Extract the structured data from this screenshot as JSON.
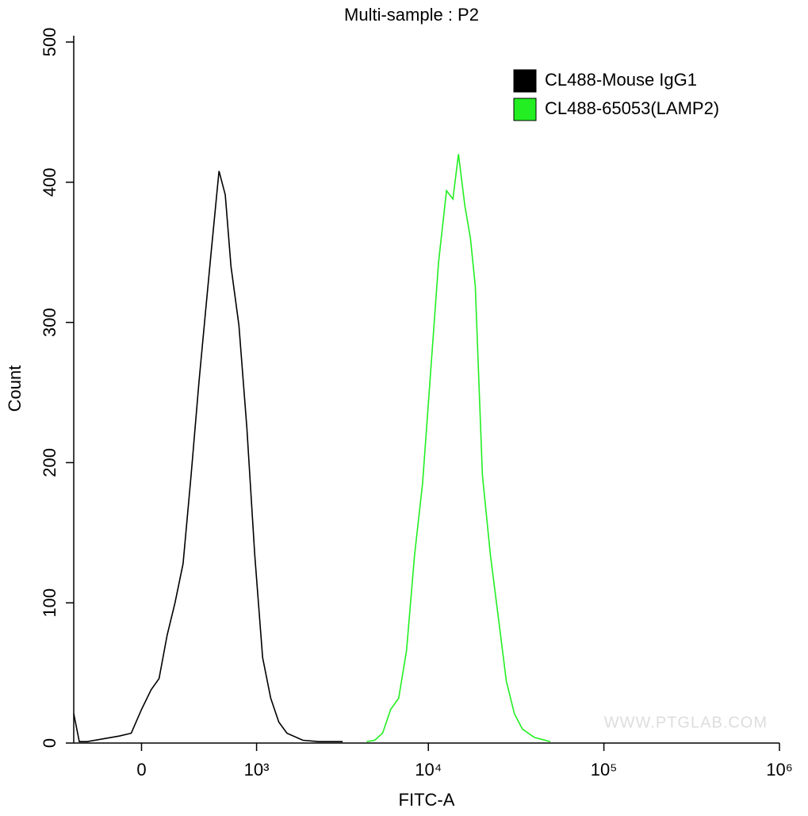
{
  "chart_data": {
    "type": "line",
    "title": "Multi-sample : P2",
    "x_label": "FITC-A",
    "y_label": "Count",
    "xscale": "biexponential",
    "xlim": [
      -470,
      1000000
    ],
    "xticks": [
      0,
      {
        "value": 1000,
        "label": "10³"
      },
      {
        "value": 10000,
        "label": "10⁴"
      },
      {
        "value": 100000,
        "label": "10⁵"
      },
      {
        "value": 1000000,
        "label": "10⁶"
      }
    ],
    "ylim": [
      0,
      500
    ],
    "yticks": [
      0,
      100,
      200,
      300,
      400,
      500
    ],
    "legend": "top-right",
    "annotation": "WWW.PTGLAB.COM",
    "series": [
      {
        "name": "CL488-Mouse IgG1",
        "color": "#000000",
        "x": [
          -470,
          -423,
          -360,
          -244,
          -138,
          -63,
          0,
          59,
          108,
          159,
          211,
          266,
          324,
          385,
          437,
          485,
          558,
          620,
          680,
          769,
          867,
          974,
          1090,
          1223,
          1369,
          1531,
          1902,
          2358,
          3236
        ],
        "values": [
          21,
          1,
          1,
          3,
          5,
          7,
          24,
          38,
          46,
          77,
          100,
          128,
          191,
          258,
          307,
          349,
          408,
          391,
          340,
          298,
          225,
          134,
          61,
          32,
          15,
          7,
          2,
          1,
          1
        ]
      },
      {
        "name": "CL488-65053(LAMP2)",
        "color": "#22ee22",
        "x": [
          4445,
          4938,
          5482,
          6096,
          6770,
          7510,
          8342,
          9267,
          10295,
          11430,
          12690,
          13801,
          14847,
          16149,
          17372,
          18502,
          20334,
          22580,
          25077,
          27840,
          30904,
          34317,
          40176,
          49523
        ],
        "values": [
          1,
          2,
          7,
          24,
          32,
          66,
          134,
          185,
          264,
          343,
          394,
          388,
          420,
          383,
          360,
          326,
          191,
          134,
          89,
          44,
          21,
          10,
          4,
          1
        ]
      }
    ]
  }
}
